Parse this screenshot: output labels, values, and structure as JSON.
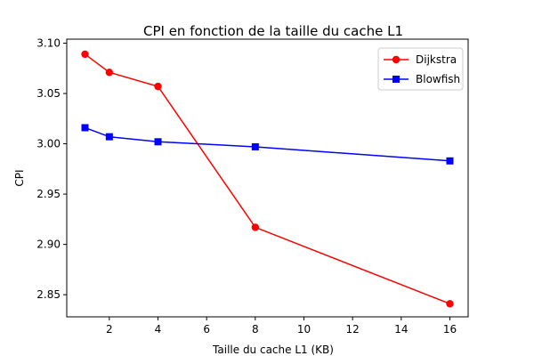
{
  "chart_data": {
    "type": "line",
    "title": "CPI en fonction de la taille du cache L1",
    "xlabel": "Taille du cache L1 (KB)",
    "ylabel": "CPI",
    "x": [
      1,
      2,
      4,
      8,
      16
    ],
    "xlim": [
      0.25,
      16.75
    ],
    "ylim": [
      2.828,
      3.104
    ],
    "xticks": [
      2,
      4,
      6,
      8,
      10,
      12,
      14,
      16
    ],
    "yticks": [
      2.85,
      2.9,
      2.95,
      3.0,
      3.05,
      3.1
    ],
    "xtick_labels": [
      "2",
      "4",
      "6",
      "8",
      "10",
      "12",
      "14",
      "16"
    ],
    "ytick_labels": [
      "2.85",
      "2.90",
      "2.95",
      "3.00",
      "3.05",
      "3.10"
    ],
    "grid": false,
    "legend_position": "top-right",
    "series": [
      {
        "name": "Dijkstra",
        "color": "#ff0000",
        "marker": "circle",
        "values": [
          3.089,
          3.071,
          3.057,
          2.917,
          2.841
        ]
      },
      {
        "name": "Blowfish",
        "color": "#0000ff",
        "marker": "square",
        "values": [
          3.016,
          3.007,
          3.002,
          2.997,
          2.983
        ]
      }
    ]
  }
}
